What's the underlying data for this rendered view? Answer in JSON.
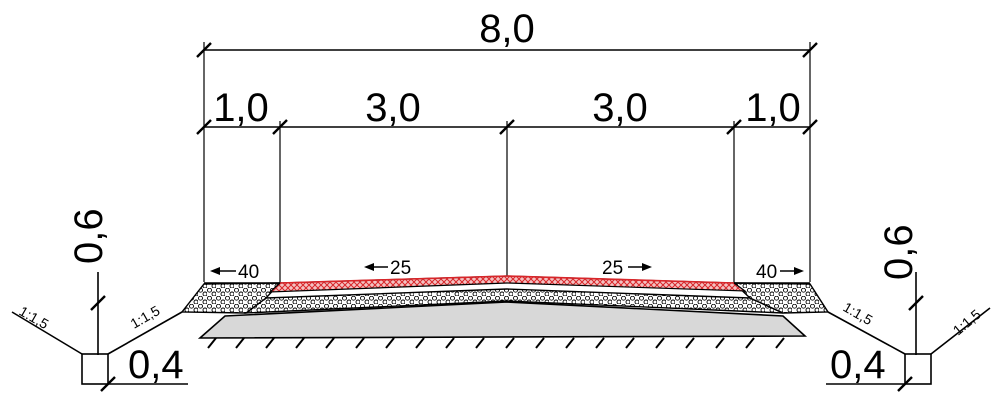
{
  "dimensions": {
    "total_width": "8,0",
    "shoulder_left": "1,0",
    "lane_left": "3,0",
    "lane_right": "3,0",
    "shoulder_right": "1,0",
    "depth_left": "0,6",
    "depth_right": "0,6",
    "ditch_left": "0,4",
    "ditch_right": "0,4"
  },
  "slopes": {
    "shoulder_left": "40",
    "lane_left": "25",
    "lane_right": "25",
    "shoulder_right": "40"
  },
  "embankment": {
    "outer_left": "1:1,5",
    "inner_left": "1:1,5",
    "inner_right": "1:1,5",
    "outer_right": "1:1,5"
  },
  "colors": {
    "line": "#000000",
    "surface_red": "#d9262a",
    "subgrade_fill": "#d8d8d8"
  }
}
